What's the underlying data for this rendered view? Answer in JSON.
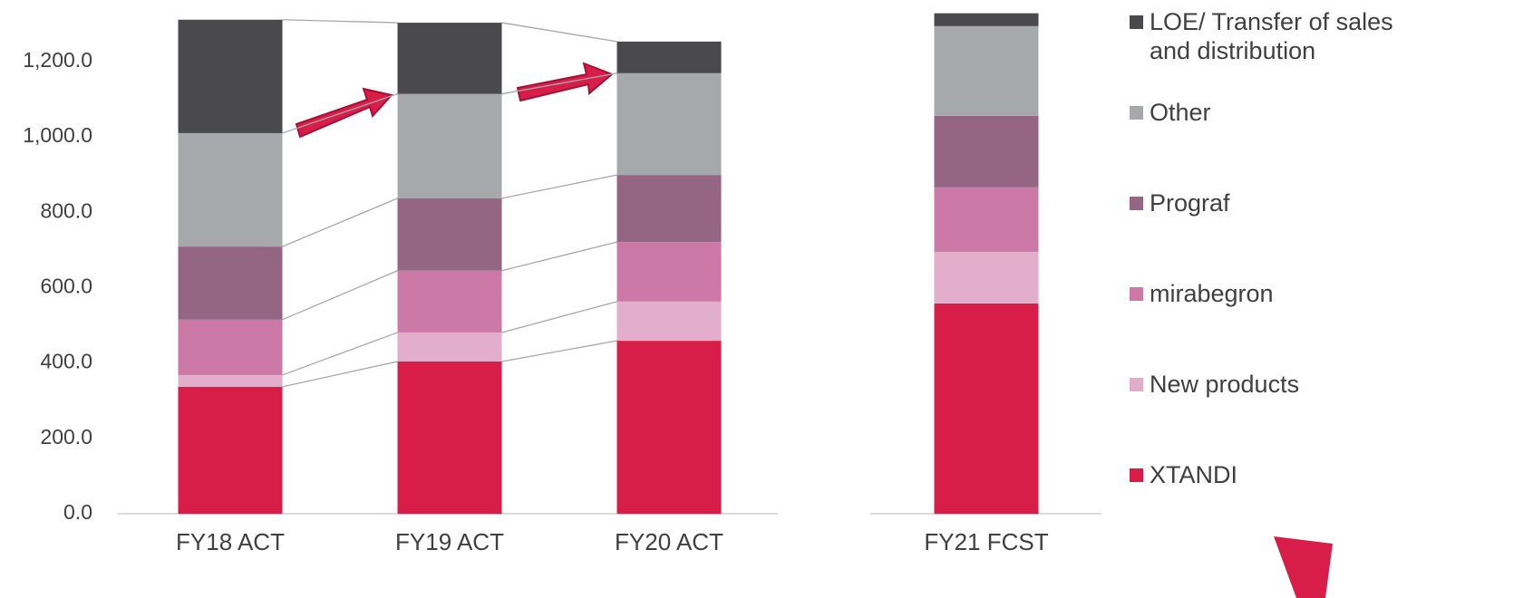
{
  "chart_data": {
    "type": "stacked_bar",
    "categories": [
      "FY18 ACT",
      "FY19 ACT",
      "FY20 ACT",
      "FY21 FCST"
    ],
    "series": [
      {
        "name": "XTANDI",
        "color": "#d81e48",
        "values": [
          337,
          404,
          459,
          558
        ]
      },
      {
        "name": "New products",
        "color": "#e2aecb",
        "values": [
          31,
          77,
          104,
          137
        ]
      },
      {
        "name": "mirabegron",
        "color": "#cc79a7",
        "values": [
          147,
          164,
          158,
          171
        ]
      },
      {
        "name": "Prograf",
        "color": "#946684",
        "values": [
          194,
          192,
          178,
          190
        ]
      },
      {
        "name": "Other",
        "color": "#a7a8ab",
        "values": [
          301,
          277,
          270,
          238
        ]
      },
      {
        "name": "LOE/ Transfer of sales and distribution",
        "color": "#4a4a4c",
        "values": [
          301,
          189,
          84,
          34
        ]
      }
    ],
    "ylim": [
      0,
      1320
    ],
    "yticks": [
      {
        "value": 0,
        "label": "0.0"
      },
      {
        "value": 200,
        "label": "200.0"
      },
      {
        "value": 400,
        "label": "400.0"
      },
      {
        "value": 600,
        "label": "600.0"
      },
      {
        "value": 800,
        "label": "800.0"
      },
      {
        "value": 1000,
        "label": "1,000.0"
      },
      {
        "value": 1200,
        "label": "1,200.0"
      }
    ],
    "grid": false
  }
}
